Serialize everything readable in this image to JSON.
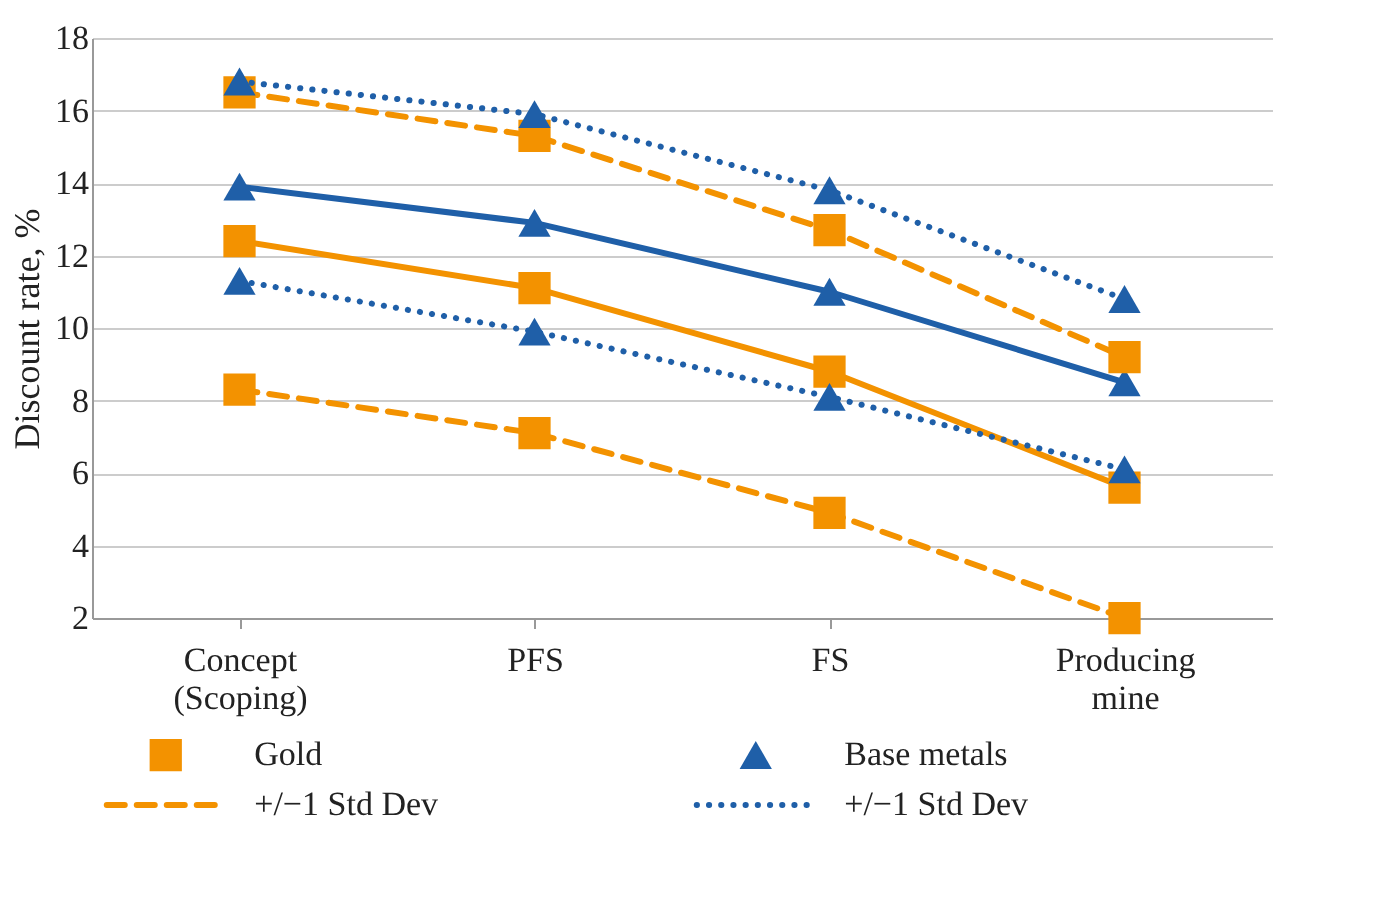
{
  "chart_data": {
    "type": "line",
    "ylabel": "Discount rate, %",
    "categories": [
      "Concept (Scoping)",
      "PFS",
      "FS",
      "Producing mine"
    ],
    "ylim": [
      2,
      18
    ],
    "yticks": [
      2,
      4,
      6,
      8,
      10,
      12,
      14,
      16,
      18
    ],
    "grid": "y",
    "legend": "bottom",
    "series": [
      {
        "name": "Gold",
        "color": "#f39200",
        "values": [
          12.4,
          11.1,
          8.8,
          5.6
        ],
        "marker": "square",
        "line_style": "solid"
      },
      {
        "name": "Base metals",
        "color": "#1f5fa8",
        "values": [
          13.9,
          12.9,
          11.0,
          8.5
        ],
        "marker": "triangle",
        "line_style": "solid"
      },
      {
        "name": "+/−1 Std Dev",
        "color": "#f39200",
        "values": [
          16.5,
          15.3,
          12.7,
          9.2
        ],
        "marker": "square",
        "line_style": "dashed"
      },
      {
        "name": "+/−1 Std Dev",
        "color": "#1f5fa8",
        "values": [
          16.8,
          15.9,
          13.8,
          10.8
        ],
        "marker": "triangle",
        "line_style": "dotted"
      },
      {
        "color": "#f39200",
        "values": [
          8.3,
          7.1,
          4.9,
          2.0
        ],
        "marker": "square",
        "line_style": "dashed"
      },
      {
        "color": "#1f5fa8",
        "values": [
          11.3,
          9.9,
          8.1,
          6.1
        ],
        "marker": "triangle",
        "line_style": "dotted"
      }
    ]
  }
}
